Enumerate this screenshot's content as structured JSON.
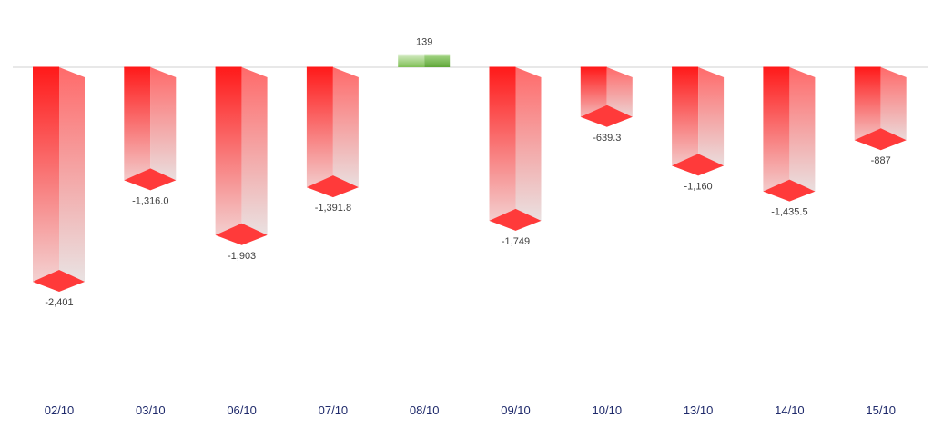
{
  "chart_data": {
    "type": "bar",
    "style": "3d-columns",
    "categories": [
      "02/10",
      "03/10",
      "06/10",
      "07/10",
      "08/10",
      "09/10",
      "10/10",
      "13/10",
      "14/10",
      "15/10"
    ],
    "values": [
      -2401,
      -1316.0,
      -1903,
      -1391.8,
      139,
      -1749,
      -639.3,
      -1160,
      -1435.5,
      -887
    ],
    "value_labels": [
      "-2,401",
      "-1,316.0",
      "-1,903",
      "-1,391.8",
      "139",
      "-1,749",
      "-639.3",
      "-1,160",
      "-1,435.5",
      "-887"
    ],
    "title": "",
    "xlabel": "",
    "ylabel": "",
    "ylim": [
      -3300,
      270
    ],
    "grid": false,
    "legend": "none",
    "colors": {
      "negative": "#ff1a1a",
      "negative_light": "#e8e8e8",
      "positive": "#6db33f",
      "positive_light": "#d6ecc6",
      "zero_line": "#d0d0d0",
      "value_label": "#404040",
      "category_label": "#1f2a6b"
    }
  }
}
